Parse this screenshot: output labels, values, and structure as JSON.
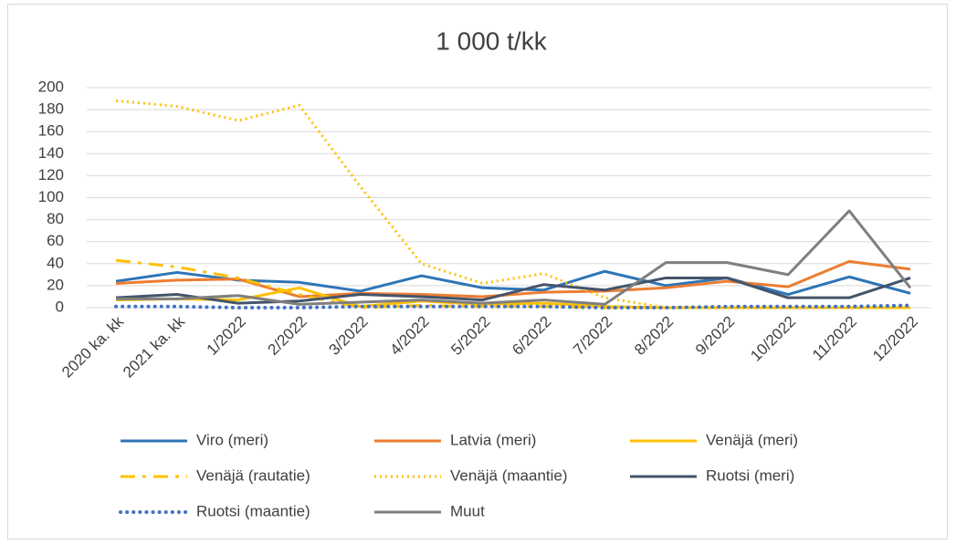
{
  "chart_data": {
    "type": "line",
    "title": "1 000 t/kk",
    "categories": [
      "2020 ka. kk",
      "2021 ka. kk",
      "1/2022",
      "2/2022",
      "3/2022",
      "4/2022",
      "5/2022",
      "6/2022",
      "7/2022",
      "8/2022",
      "9/2022",
      "10/2022",
      "11/2022",
      "12/2022"
    ],
    "ylim": [
      0,
      200
    ],
    "yticks": [
      0,
      20,
      40,
      60,
      80,
      100,
      120,
      140,
      160,
      180,
      200
    ],
    "grid": true,
    "legend": "bottom",
    "series": [
      {
        "name": "Viro (meri)",
        "color": "#2e75b6",
        "dash": "solid",
        "values": [
          24,
          32,
          25,
          23,
          15,
          29,
          18,
          16,
          33,
          20,
          27,
          12,
          28,
          13
        ]
      },
      {
        "name": "Latvia (meri)",
        "color": "#ed7d31",
        "dash": "solid",
        "values": [
          22,
          25,
          26,
          10,
          13,
          12,
          10,
          14,
          15,
          18,
          24,
          19,
          42,
          35
        ]
      },
      {
        "name": "Venäjä (meri)",
        "color": "#ffc000",
        "dash": "solid",
        "values": [
          7,
          8,
          7,
          18,
          1,
          6,
          3,
          4,
          1,
          0,
          0,
          0,
          0,
          0
        ]
      },
      {
        "name": "Venäjä (rautatie)",
        "color": "#ffc000",
        "dash": "dashdot",
        "values": [
          43,
          37,
          27,
          12,
          0,
          2,
          1,
          1,
          0,
          0,
          0,
          0,
          0,
          0
        ]
      },
      {
        "name": "Venäjä (maantie)",
        "color": "#ffc000",
        "dash": "dot",
        "values": [
          188,
          183,
          170,
          184,
          110,
          40,
          22,
          31,
          9,
          0,
          0,
          0,
          0,
          0
        ]
      },
      {
        "name": "Ruotsi (meri)",
        "color": "#44546a",
        "dash": "solid",
        "values": [
          9,
          12,
          4,
          6,
          12,
          10,
          7,
          21,
          16,
          27,
          27,
          9,
          9,
          27
        ]
      },
      {
        "name": "Ruotsi (maantie)",
        "color": "#4472c4",
        "dash": "rounddot",
        "values": [
          1,
          1,
          0,
          0,
          1,
          1,
          1,
          1,
          0,
          0,
          1,
          1,
          1,
          2
        ]
      },
      {
        "name": "Muut",
        "color": "#7f7f7f",
        "dash": "solid",
        "values": [
          8,
          8,
          11,
          3,
          5,
          7,
          4,
          7,
          3,
          41,
          41,
          30,
          88,
          18
        ]
      }
    ]
  }
}
